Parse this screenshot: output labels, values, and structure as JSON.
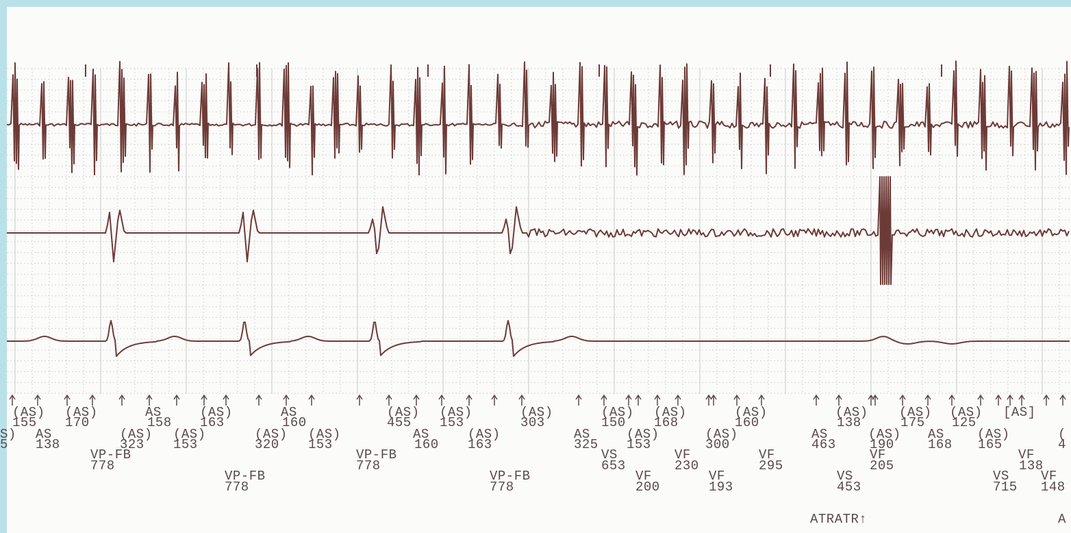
{
  "annotation_rows": [
    [
      "(AS)",
      "(AS)",
      "AS",
      "(AS)",
      "AS",
      "(AS)",
      "(AS)",
      "(AS)",
      "(AS)",
      "(AS)",
      "(AS)",
      "(AS)",
      "(AS)",
      "(AS)",
      "[AS]"
    ],
    [
      "155",
      "170",
      "158",
      "163",
      "160",
      "455",
      "153",
      "303",
      "150",
      "168",
      "160",
      "138",
      "175",
      "125"
    ],
    [
      "S)",
      "AS",
      "(AS)",
      "(AS)",
      "(AS)",
      "(AS)",
      "AS",
      "(AS)",
      "AS",
      "(AS)",
      "(AS)",
      "AS",
      "(AS)",
      "AS",
      "(AS)",
      "("
    ],
    [
      "5",
      "138",
      "323",
      "153",
      "320",
      "153",
      "160",
      "163",
      "325",
      "153",
      "300",
      "463",
      "190",
      "168",
      "165",
      "4"
    ],
    [
      "VP-FB",
      "VP-FB",
      "VS",
      "VF",
      "VF",
      "VF",
      "VF"
    ],
    [
      "778",
      "778",
      "653",
      "230",
      "295",
      "205",
      "138"
    ],
    [
      "VP-FB",
      "VP-FB",
      "VF",
      "VF",
      "VS",
      "VS",
      "VF"
    ],
    [
      "778",
      "778",
      "200",
      "193",
      "453",
      "715",
      "148"
    ],
    [
      "ATRATR↑",
      "A"
    ]
  ]
}
